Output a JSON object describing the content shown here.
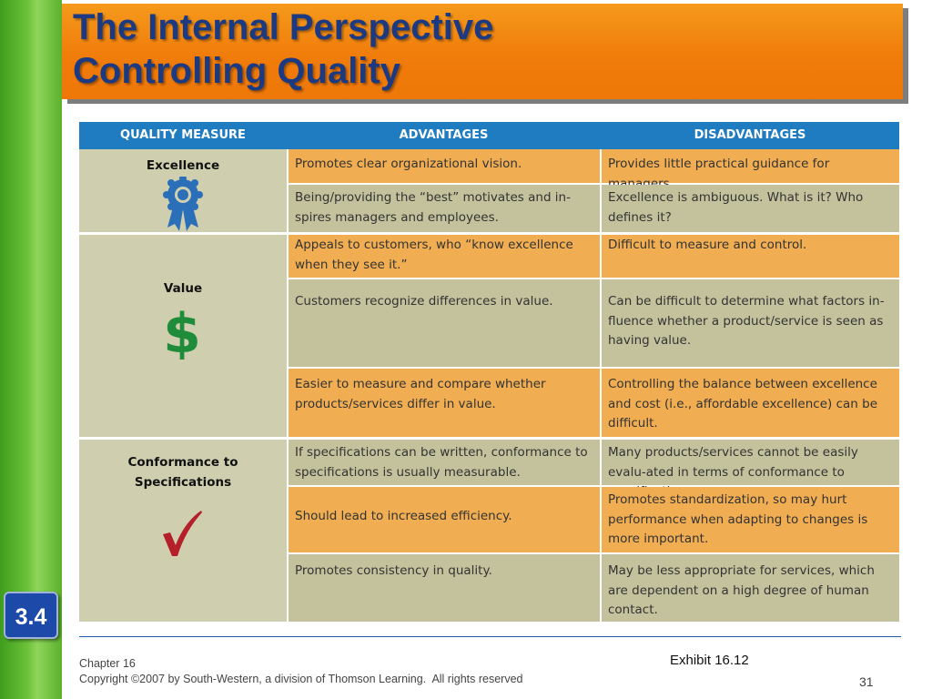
{
  "slide": {
    "title_line1": "The Internal Perspective",
    "title_line2": "Controlling Quality",
    "section_badge": "3.4",
    "exhibit_label": "Exhibit 16.12",
    "chapter": "Chapter 16",
    "copyright": "Copyright ©2007 by South-Western, a division of Thomson Learning.  All rights reserved",
    "page_number": "31"
  },
  "table": {
    "headers": [
      "QUALITY MEASURE",
      "ADVANTAGES",
      "DISADVANTAGES"
    ],
    "groups": [
      {
        "measure": "Excellence",
        "icon": "award-ribbon-icon",
        "rows": [
          {
            "advantage": "Promotes clear organizational vision.",
            "disadvantage": "Provides little practical guidance for managers."
          },
          {
            "advantage": "Being/providing the “best” motivates and in-spires managers and employees.",
            "disadvantage": "Excellence is ambiguous. What is it? Who defines it?"
          }
        ]
      },
      {
        "measure": "Value",
        "icon": "dollar-sign-icon",
        "rows": [
          {
            "advantage": "Appeals to customers, who “know excellence when they see it.”",
            "disadvantage": "Difficult to measure and control."
          },
          {
            "advantage": "Customers recognize differences in value.",
            "disadvantage": "Can be difficult to determine what factors in-fluence whether a product/service is seen as having value."
          },
          {
            "advantage": "Easier to measure and compare whether products/services differ in value.",
            "disadvantage": "Controlling the balance between excellence and cost (i.e., affordable excellence) can be difficult."
          }
        ]
      },
      {
        "measure": "Conformance to Specifications",
        "icon": "checkmark-icon",
        "rows": [
          {
            "advantage": "If specifications can be written, conformance to specifications is usually measurable.",
            "disadvantage": "Many products/services cannot be easily evalu-ated in terms of conformance to specifications."
          },
          {
            "advantage": "Should lead to increased efficiency.",
            "disadvantage": "Promotes standardization, so may hurt performance when adapting to changes is more important."
          },
          {
            "advantage": "Promotes consistency in quality.",
            "disadvantage": "May be less appropriate for services, which are dependent on a high degree of human contact."
          }
        ]
      }
    ]
  },
  "colors": {
    "title_bar": "#f07c0a",
    "title_text": "#1b3a82",
    "header_blue": "#1f7cc1",
    "orange_cell": "#f0ad52",
    "olive_cell": "#c3c29c",
    "measure_cell": "#cfcfb0",
    "ribbon_blue": "#2a6fb8",
    "dollar_green": "#1e8c3a",
    "check_red": "#b51f2a"
  }
}
